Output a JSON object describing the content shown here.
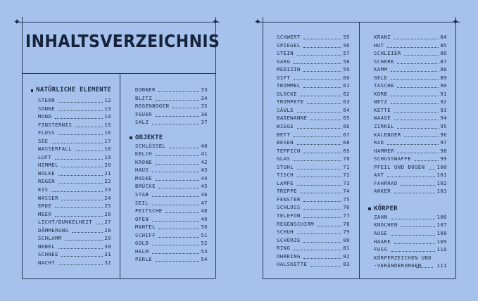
{
  "title": "INHALTSVERZEICHNIS",
  "sections": {
    "natur": {
      "heading": "NATÜRLICHE ELEMENTE",
      "entries": [
        {
          "name": "STERN",
          "page": "12"
        },
        {
          "name": "SONNE",
          "page": "13"
        },
        {
          "name": "MOND",
          "page": "14"
        },
        {
          "name": "FINSTERNIS",
          "page": "15"
        },
        {
          "name": "FLUSS",
          "page": "16"
        },
        {
          "name": "SEE",
          "page": "17"
        },
        {
          "name": "WASSERFALL",
          "page": "18"
        },
        {
          "name": "LUFT",
          "page": "19"
        },
        {
          "name": "HIMMEL",
          "page": "20"
        },
        {
          "name": "WOLKE",
          "page": "21"
        },
        {
          "name": "REGEN",
          "page": "22"
        },
        {
          "name": "EIS",
          "page": "23"
        },
        {
          "name": "WASSER",
          "page": "24"
        },
        {
          "name": "ERDE",
          "page": "25"
        },
        {
          "name": "MEER",
          "page": "26"
        },
        {
          "name": "LICHT/DUNKELHEIT",
          "page": "27"
        },
        {
          "name": "DÄMMERUNG",
          "page": "28"
        },
        {
          "name": "SCHLAMM",
          "page": "29"
        },
        {
          "name": "NEBEL",
          "page": "30"
        },
        {
          "name": "SCHNEE",
          "page": "31"
        },
        {
          "name": "NACHT",
          "page": "32"
        }
      ],
      "continued": [
        {
          "name": "DONNER",
          "page": "33"
        },
        {
          "name": "BLITZ",
          "page": "34"
        },
        {
          "name": "REGENBOGEN",
          "page": "35"
        },
        {
          "name": "FEUER",
          "page": "36"
        },
        {
          "name": "SALZ",
          "page": "37"
        }
      ]
    },
    "objekte": {
      "heading": "OBJEKTE",
      "entries": [
        {
          "name": "SCHLÜSSEL",
          "page": "40"
        },
        {
          "name": "KELCH",
          "page": "41"
        },
        {
          "name": "KRONE",
          "page": "42"
        },
        {
          "name": "HAUS",
          "page": "43"
        },
        {
          "name": "MASKE",
          "page": "44"
        },
        {
          "name": "BRÜCKE",
          "page": "45"
        },
        {
          "name": "STAB",
          "page": "46"
        },
        {
          "name": "SEIL",
          "page": "47"
        },
        {
          "name": "PEITSCHE",
          "page": "48"
        },
        {
          "name": "OFEN",
          "page": "49"
        },
        {
          "name": "MANTEL",
          "page": "50"
        },
        {
          "name": "SCHIFF",
          "page": "51"
        },
        {
          "name": "GOLD",
          "page": "52"
        },
        {
          "name": "HELM",
          "page": "53"
        },
        {
          "name": "PERLE",
          "page": "54"
        }
      ],
      "continued_a": [
        {
          "name": "SCHWERT",
          "page": "55"
        },
        {
          "name": "SPIEGEL",
          "page": "56"
        },
        {
          "name": "STEIN",
          "page": "57"
        },
        {
          "name": "SARG",
          "page": "58"
        },
        {
          "name": "MEDIZIN",
          "page": "59"
        },
        {
          "name": "GIFT",
          "page": "60"
        },
        {
          "name": "TROMMEL",
          "page": "61"
        },
        {
          "name": "GLOCKE",
          "page": "62"
        },
        {
          "name": "TROMPETE",
          "page": "63"
        },
        {
          "name": "SÄULE",
          "page": "64"
        },
        {
          "name": "BADEWANNE",
          "page": "65"
        },
        {
          "name": "WIEGE",
          "page": "66"
        },
        {
          "name": "BETT",
          "page": "67"
        },
        {
          "name": "BESEN",
          "page": "68"
        },
        {
          "name": "TEPPICH",
          "page": "69"
        },
        {
          "name": "GLAS",
          "page": "70"
        },
        {
          "name": "STUHL",
          "page": "71"
        },
        {
          "name": "TISCH",
          "page": "72"
        },
        {
          "name": "LAMPE",
          "page": "73"
        },
        {
          "name": "TREPPE",
          "page": "74"
        },
        {
          "name": "FENSTER",
          "page": "75"
        },
        {
          "name": "SCHLOSS",
          "page": "76"
        },
        {
          "name": "TELEFON",
          "page": "77"
        },
        {
          "name": "REGENSCHIRM",
          "page": "78"
        },
        {
          "name": "SCHUH",
          "page": "79"
        },
        {
          "name": "SCHÜRZE",
          "page": "80"
        },
        {
          "name": "RING",
          "page": "81"
        },
        {
          "name": "OHRRING",
          "page": "82"
        },
        {
          "name": "HALSKETTE",
          "page": "83"
        }
      ],
      "continued_b": [
        {
          "name": "KRANZ",
          "page": "84"
        },
        {
          "name": "HUT",
          "page": "85"
        },
        {
          "name": "SCHLEIER",
          "page": "86"
        },
        {
          "name": "SCHERE",
          "page": "87"
        },
        {
          "name": "KAMM",
          "page": "88"
        },
        {
          "name": "GELD",
          "page": "89"
        },
        {
          "name": "TASCHE",
          "page": "90"
        },
        {
          "name": "KORB",
          "page": "91"
        },
        {
          "name": "NETZ",
          "page": "92"
        },
        {
          "name": "KETTE",
          "page": "93"
        },
        {
          "name": "WAAGE",
          "page": "94"
        },
        {
          "name": "ZIRKEL",
          "page": "95"
        },
        {
          "name": "KALENDER",
          "page": "96"
        },
        {
          "name": "RAD",
          "page": "97"
        },
        {
          "name": "HAMMER",
          "page": "98"
        },
        {
          "name": "SCHUSSWAFFE",
          "page": "99"
        },
        {
          "name": "PFEIL UND BOGEN",
          "page": "100"
        },
        {
          "name": "AXT",
          "page": "101"
        },
        {
          "name": "FAHRRAD",
          "page": "102"
        },
        {
          "name": "ANKER",
          "page": "103"
        }
      ]
    },
    "koerper": {
      "heading": "KÖRPER",
      "entries": [
        {
          "name": "ZAHN",
          "page": "106"
        },
        {
          "name": "KNOCHEN",
          "page": "107"
        },
        {
          "name": "AUGE",
          "page": "108"
        },
        {
          "name": "HAARE",
          "page": "109"
        },
        {
          "name": "FUSS",
          "page": "110"
        }
      ],
      "multi_line1": "KÖRPERZEICHEN UND",
      "multi_line2": "-VERÄNDERUNGEN",
      "multi_page": "111"
    }
  }
}
